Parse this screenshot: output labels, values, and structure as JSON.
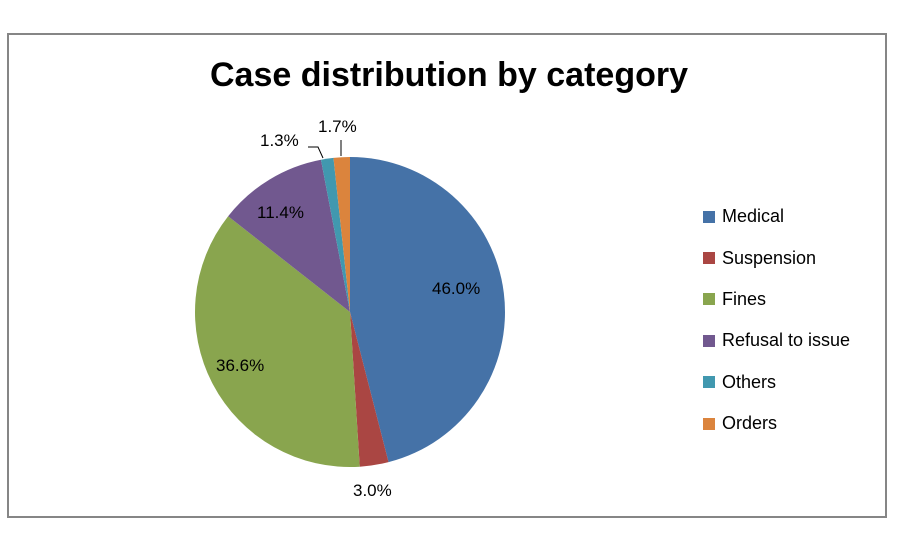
{
  "chart_data": {
    "type": "pie",
    "title": "Case distribution by category",
    "categories": [
      "Medical",
      "Suspension",
      "Fines",
      "Refusal to issue",
      "Others",
      "Orders"
    ],
    "values": [
      46.0,
      3.0,
      36.6,
      11.4,
      1.3,
      1.7
    ],
    "labels": [
      "46.0%",
      "3.0%",
      "36.6%",
      "11.4%",
      "1.3%",
      "1.7%"
    ],
    "colors": [
      "#4572a7",
      "#aa4643",
      "#89a54e",
      "#71588f",
      "#4198af",
      "#db843d"
    ],
    "legend_position": "right",
    "start_angle_deg": 0,
    "direction": "clockwise"
  },
  "title": "Case distribution by category",
  "legend": [
    {
      "label": "Medical",
      "color": "#4572a7"
    },
    {
      "label": "Suspension",
      "color": "#aa4643"
    },
    {
      "label": "Fines",
      "color": "#89a54e"
    },
    {
      "label": "Refusal to issue",
      "color": "#71588f"
    },
    {
      "label": "Others",
      "color": "#4198af"
    },
    {
      "label": "Orders",
      "color": "#db843d"
    }
  ],
  "data_labels": {
    "medical": "46.0%",
    "suspension": "3.0%",
    "fines": "36.6%",
    "refusal": "11.4%",
    "others": "1.3%",
    "orders": "1.7%"
  }
}
